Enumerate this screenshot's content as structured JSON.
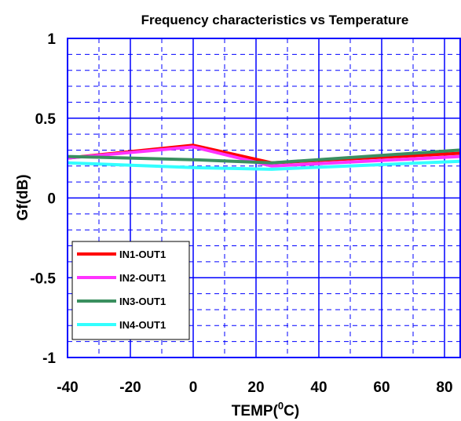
{
  "chart_data": {
    "type": "line",
    "title": "Frequency characteristics vs Temperature",
    "xlabel": "TEMP(",
    "xlabel_sup": "0",
    "xlabel_end": "C)",
    "ylabel": "Gf(dB)",
    "x": [
      -40,
      0,
      25,
      85
    ],
    "xlim": [
      -40,
      85
    ],
    "ylim": [
      -1,
      1
    ],
    "x_ticks": [
      -40,
      -20,
      0,
      20,
      40,
      60,
      80
    ],
    "x_tick_labels": [
      "-40",
      "-20",
      "0",
      "20",
      "40",
      "60",
      "80"
    ],
    "y_ticks": [
      1,
      0.5,
      0,
      -0.5,
      -1
    ],
    "y_tick_labels": [
      "1",
      "0.5",
      "0",
      "-0.5",
      "-1"
    ],
    "grid": true,
    "legend_position": "bottom-left",
    "series": [
      {
        "name": "IN1-OUT1",
        "color": "#ff0000",
        "values": [
          0.25,
          0.33,
          0.22,
          0.28
        ]
      },
      {
        "name": "IN2-OUT1",
        "color": "#ff33ff",
        "values": [
          0.25,
          0.32,
          0.2,
          0.26
        ]
      },
      {
        "name": "IN3-OUT1",
        "color": "#3a8f5f",
        "values": [
          0.26,
          0.24,
          0.22,
          0.3
        ]
      },
      {
        "name": "IN4-OUT1",
        "color": "#33ffff",
        "values": [
          0.22,
          0.19,
          0.18,
          0.23
        ]
      }
    ]
  }
}
